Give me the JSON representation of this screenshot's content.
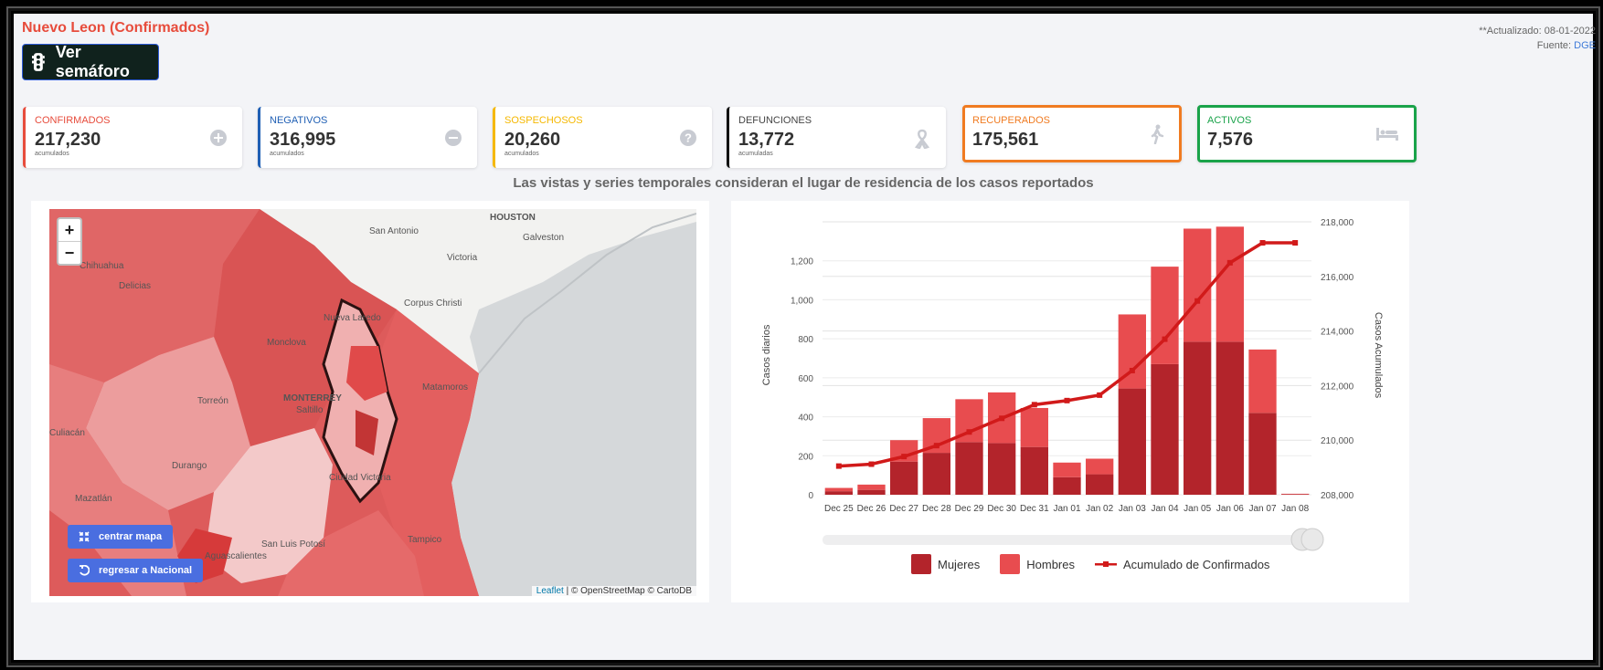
{
  "header": {
    "title": "Nuevo Leon (Confirmados)",
    "semaforo_label": "Ver semáforo",
    "updated": "**Actualizado: 08-01-2022",
    "source_prefix": "Fuente:",
    "source_link": "DGE"
  },
  "cards": [
    {
      "label": "CONFIRMADOS",
      "value": "217,230",
      "sub": "acumulados",
      "color": "#e74c3c",
      "icon": "plus-circle-icon"
    },
    {
      "label": "NEGATIVOS",
      "value": "316,995",
      "sub": "acumulados",
      "color": "#1f5fb4",
      "icon": "minus-circle-icon"
    },
    {
      "label": "SOSPECHOSOS",
      "value": "20,260",
      "sub": "acumulados",
      "color": "#f5b800",
      "icon": "question-circle-icon"
    },
    {
      "label": "DEFUNCIONES",
      "value": "13,772",
      "sub": "acumuladas",
      "color": "#111111",
      "icon": "ribbon-icon"
    },
    {
      "label": "RECUPERADOS",
      "value": "175,561",
      "color": "#f07b21",
      "icon": "walking-icon"
    },
    {
      "label": "ACTIVOS",
      "value": "7,576",
      "color": "#1aa34a",
      "icon": "bed-icon"
    }
  ],
  "note": "Las vistas y series temporales consideran el lugar de residencia de los casos reportados",
  "map": {
    "zoom_in": "+",
    "zoom_out": "−",
    "center_label": "centrar mapa",
    "national_label": "regresar a Nacional",
    "attribution_leaflet": "Leaflet",
    "attribution_rest": " | © OpenStreetMap © CartoDB",
    "places": [
      "HOUSTON",
      "San Antonio",
      "Galveston",
      "Victoria",
      "Corpus Christi",
      "Chihuahua",
      "Delicias",
      "Monclova",
      "Nueva Laredo",
      "Torreón",
      "MONTERREY",
      "Saltillo",
      "Matamoros",
      "Durango",
      "Ciudad Victoria",
      "Mazatlán",
      "San Luis Potosí",
      "Tampico",
      "Aguascalientes",
      "Culiacán"
    ]
  },
  "chart_data": {
    "type": "bar",
    "categories": [
      "Dec 25",
      "Dec 26",
      "Dec 27",
      "Dec 28",
      "Dec 29",
      "Dec 30",
      "Dec 31",
      "Jan 01",
      "Jan 02",
      "Jan 03",
      "Jan 04",
      "Jan 05",
      "Jan 06",
      "Jan 07",
      "Jan 08"
    ],
    "series": [
      {
        "name": "Mujeres",
        "values": [
          18,
          25,
          170,
          215,
          270,
          265,
          245,
          90,
          105,
          545,
          670,
          785,
          785,
          420,
          3
        ]
      },
      {
        "name": "Hombres",
        "values": [
          17,
          27,
          110,
          178,
          220,
          260,
          200,
          75,
          80,
          380,
          500,
          580,
          590,
          325,
          2
        ]
      },
      {
        "name": "Acumulado de Confirmados",
        "axis": "right",
        "values": [
          209050,
          209120,
          209400,
          209800,
          210300,
          210800,
          211300,
          211450,
          211650,
          212550,
          213700,
          215100,
          216500,
          217230,
          217230
        ]
      }
    ],
    "ylabel": "Casos diarios",
    "y2label": "Casos Acumulados",
    "ylim": [
      0,
      1400
    ],
    "y2lim": [
      208000,
      218000
    ],
    "yticks": [
      "0",
      "200",
      "400",
      "600",
      "800",
      "1,000",
      "1,200"
    ],
    "y2ticks": [
      "208,000",
      "210,000",
      "212,000",
      "214,000",
      "216,000",
      "218,000"
    ],
    "colors": {
      "Mujeres": "#b3242b",
      "Hombres": "#e84c4f",
      "Acumulado de Confirmados": "#d11a1a"
    }
  }
}
